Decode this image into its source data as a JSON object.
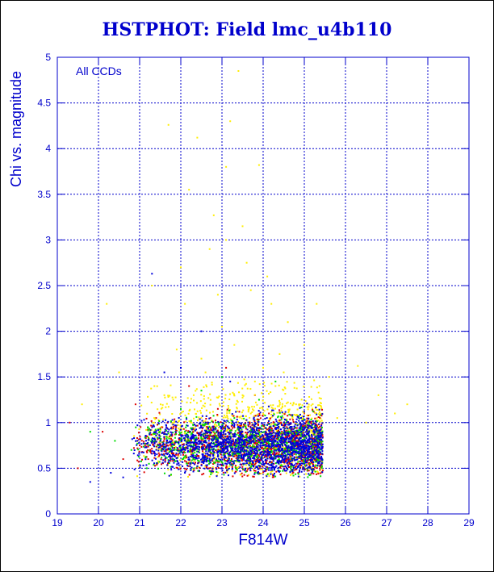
{
  "chart_data": {
    "type": "scatter",
    "title": "HSTPHOT: Field lmc_u4b110",
    "xlabel": "F814W",
    "ylabel": "Chi vs. magnitude",
    "annotation": "All CCDs",
    "xlim": [
      19,
      29
    ],
    "ylim": [
      0,
      5
    ],
    "xticks": [
      "19",
      "20",
      "21",
      "22",
      "23",
      "24",
      "25",
      "26",
      "27",
      "28",
      "29"
    ],
    "yticks": [
      "0",
      "0.5",
      "1",
      "1.5",
      "2",
      "2.5",
      "3",
      "3.5",
      "4",
      "4.5",
      "5"
    ],
    "grid": true,
    "legend": "none",
    "series": [
      {
        "color": "#ffee00",
        "points": [
          [
            21.7,
            4.26
          ],
          [
            22.4,
            4.12
          ],
          [
            23.2,
            4.3
          ],
          [
            23.4,
            4.85
          ],
          [
            23.1,
            3.8
          ],
          [
            23.9,
            3.82
          ],
          [
            22.2,
            3.55
          ],
          [
            22.8,
            3.27
          ],
          [
            23.5,
            3.15
          ],
          [
            23.1,
            3.0
          ],
          [
            22.7,
            2.9
          ],
          [
            23.6,
            2.75
          ],
          [
            22.9,
            2.4
          ],
          [
            23.7,
            2.45
          ],
          [
            21.3,
            2.5
          ],
          [
            22.1,
            2.3
          ],
          [
            24.2,
            2.3
          ],
          [
            25.3,
            2.3
          ],
          [
            24.6,
            2.1
          ],
          [
            23.0,
            2.05
          ],
          [
            23.3,
            1.85
          ],
          [
            24.0,
            1.6
          ],
          [
            24.5,
            1.55
          ],
          [
            22.5,
            1.7
          ],
          [
            21.9,
            1.8
          ],
          [
            23.8,
            1.45
          ],
          [
            24.3,
            1.4
          ],
          [
            25.6,
            1.5
          ],
          [
            26.3,
            1.62
          ],
          [
            26.8,
            1.3
          ],
          [
            27.5,
            1.2
          ],
          [
            27.2,
            1.1
          ],
          [
            26.5,
            1.0
          ],
          [
            25.8,
            1.05
          ],
          [
            24.8,
            1.2
          ],
          [
            23.5,
            1.3
          ],
          [
            22.6,
            1.55
          ],
          [
            21.6,
            1.3
          ],
          [
            20.5,
            1.55
          ],
          [
            20.2,
            2.3
          ],
          [
            19.6,
            1.2
          ],
          [
            24.1,
            2.6
          ],
          [
            25.0,
            1.85
          ],
          [
            24.4,
            1.75
          ],
          [
            22.0,
            2.7
          ],
          [
            23.7,
            1.1
          ]
        ]
      },
      {
        "color": "#00dd00",
        "points": [
          [
            21.5,
            0.85
          ],
          [
            22.3,
            0.9
          ],
          [
            23.6,
            0.7
          ],
          [
            24.1,
            0.82
          ],
          [
            25.1,
            0.75
          ],
          [
            20.4,
            0.8
          ],
          [
            21.9,
            0.7
          ],
          [
            22.8,
            0.6
          ],
          [
            23.3,
            1.05
          ],
          [
            24.5,
            1.0
          ],
          [
            22.5,
            1.35
          ],
          [
            23.9,
            1.25
          ],
          [
            21.2,
            0.95
          ],
          [
            24.8,
            0.65
          ],
          [
            25.4,
            0.9
          ],
          [
            20.8,
            0.7
          ],
          [
            19.8,
            0.9
          ],
          [
            23.0,
            1.5
          ],
          [
            24.3,
            1.45
          ],
          [
            22.0,
            1.15
          ]
        ]
      },
      {
        "color": "#dd0000",
        "points": [
          [
            19.3,
            1.0
          ],
          [
            20.1,
            0.9
          ],
          [
            21.0,
            0.75
          ],
          [
            21.8,
            0.65
          ],
          [
            22.6,
            0.8
          ],
          [
            23.4,
            0.95
          ],
          [
            24.2,
            0.7
          ],
          [
            25.0,
            1.1
          ],
          [
            23.8,
            1.3
          ],
          [
            22.9,
            1.15
          ],
          [
            21.4,
            1.05
          ],
          [
            20.6,
            0.6
          ],
          [
            24.7,
            0.9
          ],
          [
            25.3,
            0.7
          ],
          [
            22.2,
            1.4
          ],
          [
            23.1,
            1.6
          ],
          [
            19.5,
            0.5
          ],
          [
            20.9,
            1.2
          ]
        ]
      },
      {
        "color": "#0000dd",
        "points": [
          [
            22.0,
            1.6
          ],
          [
            21.6,
            1.55
          ],
          [
            23.2,
            1.45
          ],
          [
            24.0,
            0.75
          ],
          [
            24.6,
            0.7
          ],
          [
            25.2,
            0.65
          ],
          [
            23.5,
            0.6
          ],
          [
            22.7,
            0.72
          ],
          [
            21.3,
            2.63
          ],
          [
            22.5,
            2.0
          ],
          [
            23.8,
            1.0
          ],
          [
            24.4,
            0.9
          ],
          [
            25.0,
            0.55
          ],
          [
            20.3,
            0.45
          ],
          [
            19.8,
            0.35
          ],
          [
            20.6,
            0.4
          ],
          [
            21.8,
            0.6
          ],
          [
            22.9,
            0.85
          ],
          [
            24.9,
            0.8
          ],
          [
            23.3,
            0.68
          ]
        ]
      }
    ]
  }
}
